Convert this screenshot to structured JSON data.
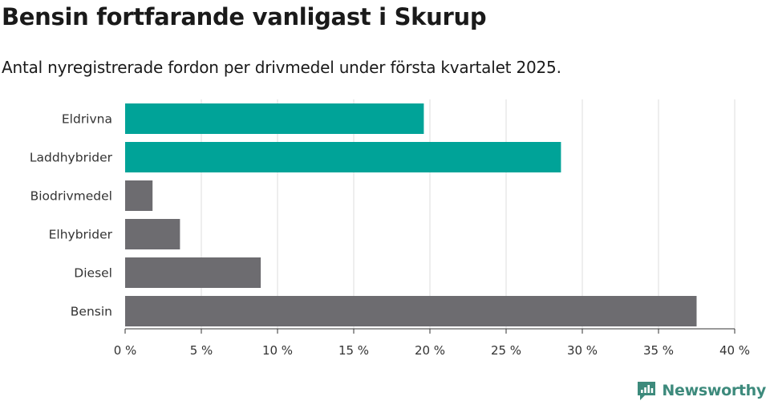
{
  "header": {
    "title": "Bensin fortfarande vanligast i Skurup",
    "subtitle": "Antal nyregistrerade fordon per drivmedel under första kvartalet 2025."
  },
  "brand": {
    "name": "Newsworthy",
    "color": "#3d8a7c"
  },
  "colors": {
    "highlight": "#00a398",
    "muted": "#6d6c70",
    "grid": "#dddddd",
    "axis": "#333333"
  },
  "chart_data": {
    "type": "bar",
    "orientation": "horizontal",
    "title": "Bensin fortfarande vanligast i Skurup",
    "subtitle": "Antal nyregistrerade fordon per drivmedel under första kvartalet 2025.",
    "xlabel": "",
    "ylabel": "",
    "xlim": [
      0,
      40
    ],
    "ticks": [
      0,
      5,
      10,
      15,
      20,
      25,
      30,
      35,
      40
    ],
    "tick_labels": [
      "0 %",
      "5 %",
      "10 %",
      "15 %",
      "20 %",
      "25 %",
      "30 %",
      "35 %",
      "40 %"
    ],
    "categories": [
      "Eldrivna",
      "Laddhybrider",
      "Biodrivmedel",
      "Elhybrider",
      "Diesel",
      "Bensin"
    ],
    "values": [
      19.6,
      28.6,
      1.8,
      3.6,
      8.9,
      37.5
    ],
    "highlighted": [
      true,
      true,
      false,
      false,
      false,
      false
    ],
    "grid": true
  }
}
